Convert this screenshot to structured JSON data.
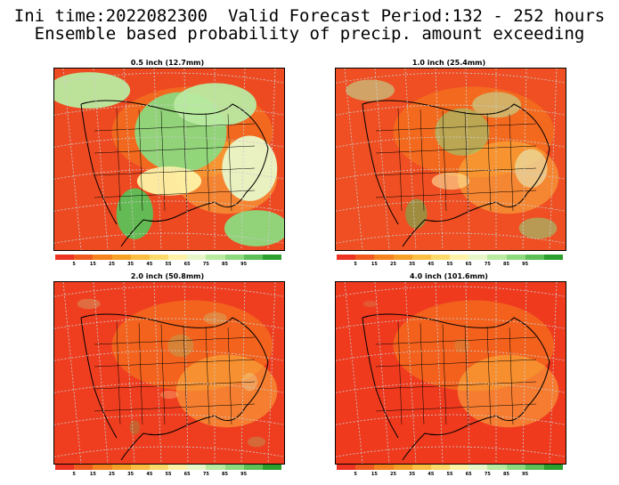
{
  "header": {
    "line1": "Ini time:2022082300  Valid Forecast Period:132 - 252 hours",
    "line2": "Ensemble based probability of precip. amount exceeding"
  },
  "colorbar": {
    "colors": [
      "#ee3322",
      "#f05a1e",
      "#f5821e",
      "#f7a028",
      "#fbbd42",
      "#fcda6a",
      "#fdf2a6",
      "#e8f7c8",
      "#b8eaa0",
      "#8cd97e",
      "#5cc057",
      "#2ca02c"
    ],
    "labels": [
      "5",
      "15",
      "25",
      "35",
      "45",
      "55",
      "65",
      "75",
      "85",
      "95"
    ]
  },
  "panels": [
    {
      "title": "0.5 inch (12.7mm)",
      "dominant": "#ee4a22",
      "wet_fraction": 0.45
    },
    {
      "title": "1.0 inch (25.4mm)",
      "dominant": "#ef4f22",
      "wet_fraction": 0.2
    },
    {
      "title": "2.0 inch (50.8mm)",
      "dominant": "#ef3e1f",
      "wet_fraction": 0.06
    },
    {
      "title": "4.0 inch (101.6mm)",
      "dominant": "#ef3a1e",
      "wet_fraction": 0.01
    }
  ]
}
